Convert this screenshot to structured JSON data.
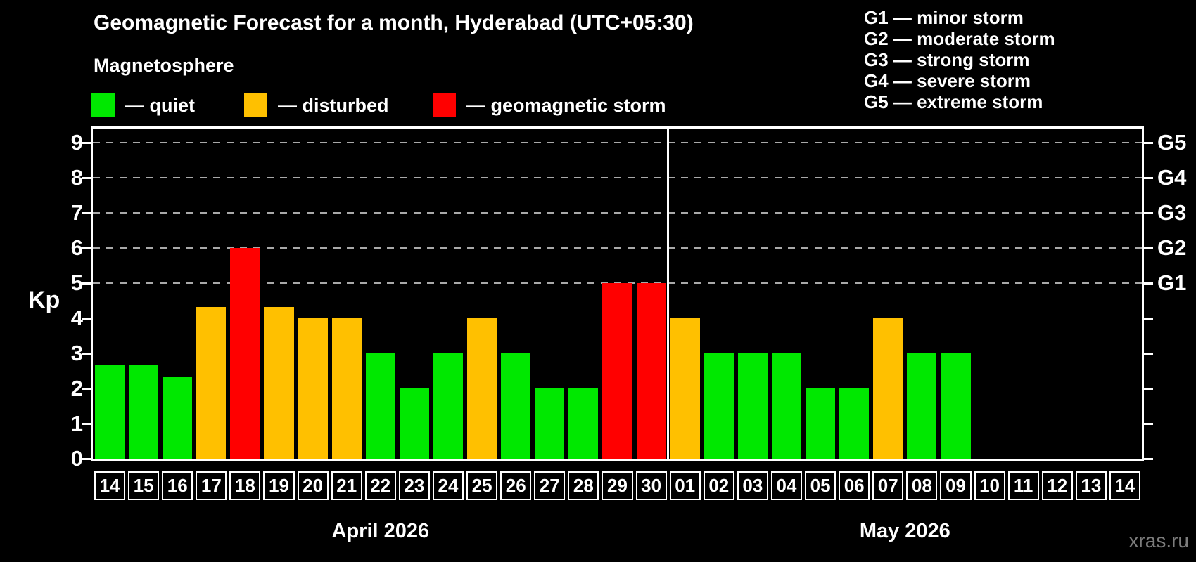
{
  "title": "Geomagnetic Forecast for a month, Hyderabad (UTC+05:30)",
  "subtitle": "Magnetosphere",
  "legend": {
    "items": [
      {
        "label": "— quiet",
        "status": "quiet"
      },
      {
        "label": "— disturbed",
        "status": "disturbed"
      },
      {
        "label": "— geomagnetic storm",
        "status": "storm"
      }
    ]
  },
  "g_legend": [
    "G1 — minor storm",
    "G2 — moderate storm",
    "G3 — strong storm",
    "G4 — severe storm",
    "G5 — extreme storm"
  ],
  "colors": {
    "quiet": "#00e800",
    "disturbed": "#ffc000",
    "storm": "#ff0000",
    "axis": "#ffffff",
    "gridline": "#a9a9a9",
    "watermark": "#7c7c7c",
    "background": "#000000"
  },
  "watermark": "xras.ru",
  "chart_data": {
    "type": "bar",
    "ylabel": "Kp",
    "ylim": [
      0,
      9.4
    ],
    "yticks": [
      0,
      1,
      2,
      3,
      4,
      5,
      6,
      7,
      8,
      9
    ],
    "gridlines_at": [
      5,
      6,
      7,
      8,
      9
    ],
    "grid": "dashed horizontal lines at Kp 5-9 only",
    "legend_position": "top",
    "right_axis_labels": [
      {
        "kp": 5,
        "label": "G1"
      },
      {
        "kp": 6,
        "label": "G2"
      },
      {
        "kp": 7,
        "label": "G3"
      },
      {
        "kp": 8,
        "label": "G4"
      },
      {
        "kp": 9,
        "label": "G5"
      }
    ],
    "months": [
      {
        "label": "April 2026",
        "days": 17
      },
      {
        "label": "May 2026",
        "days": 14
      }
    ],
    "categories": [
      "14",
      "15",
      "16",
      "17",
      "18",
      "19",
      "20",
      "21",
      "22",
      "23",
      "24",
      "25",
      "26",
      "27",
      "28",
      "29",
      "30",
      "01",
      "02",
      "03",
      "04",
      "05",
      "06",
      "07",
      "08",
      "09",
      "10",
      "11",
      "12",
      "13",
      "14"
    ],
    "values": [
      2.67,
      2.67,
      2.33,
      4.33,
      6,
      4.33,
      4,
      4,
      3,
      2,
      3,
      4,
      3,
      2,
      2,
      5,
      5,
      4,
      3,
      3,
      3,
      2,
      2,
      4,
      3,
      3,
      null,
      null,
      null,
      null,
      null
    ],
    "statuses": [
      "quiet",
      "quiet",
      "quiet",
      "disturbed",
      "storm",
      "disturbed",
      "disturbed",
      "disturbed",
      "quiet",
      "quiet",
      "quiet",
      "disturbed",
      "quiet",
      "quiet",
      "quiet",
      "storm",
      "storm",
      "disturbed",
      "quiet",
      "quiet",
      "quiet",
      "quiet",
      "quiet",
      "disturbed",
      "quiet",
      "quiet",
      null,
      null,
      null,
      null,
      null
    ]
  }
}
